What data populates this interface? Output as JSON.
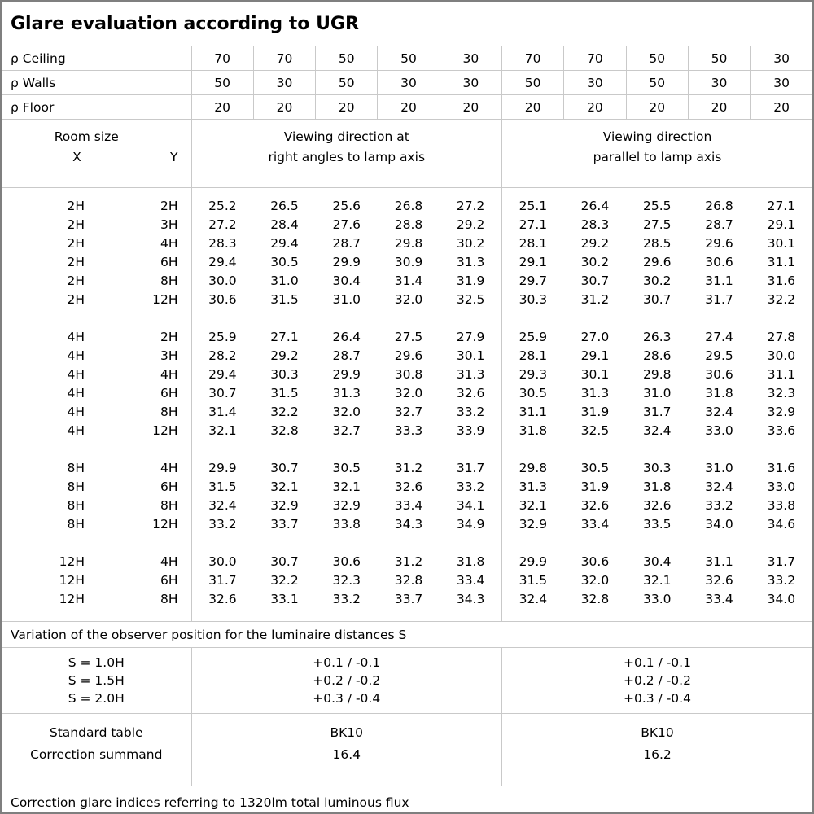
{
  "title": "Glare evaluation according to UGR",
  "colors": {
    "background": "#ffffff",
    "text": "#000000",
    "grid_line": "#c9c9c9",
    "outer_frame": "#7f7f7f"
  },
  "reflectance": {
    "rows": [
      {
        "label": "ρ Ceiling",
        "values": [
          "70",
          "70",
          "50",
          "50",
          "30",
          "70",
          "70",
          "50",
          "50",
          "30"
        ]
      },
      {
        "label": "ρ Walls",
        "values": [
          "50",
          "30",
          "50",
          "30",
          "30",
          "50",
          "30",
          "50",
          "30",
          "30"
        ]
      },
      {
        "label": "ρ Floor",
        "values": [
          "20",
          "20",
          "20",
          "20",
          "20",
          "20",
          "20",
          "20",
          "20",
          "20"
        ]
      }
    ]
  },
  "room_header": {
    "label": "Room size",
    "x": "X",
    "y": "Y",
    "group1": [
      "Viewing direction at",
      "right angles to lamp axis"
    ],
    "group2": [
      "Viewing direction",
      "parallel to lamp axis"
    ]
  },
  "body_groups": [
    {
      "rows": [
        {
          "x": "2H",
          "y": "2H",
          "values": [
            "25.2",
            "26.5",
            "25.6",
            "26.8",
            "27.2",
            "25.1",
            "26.4",
            "25.5",
            "26.8",
            "27.1"
          ]
        },
        {
          "x": "2H",
          "y": "3H",
          "values": [
            "27.2",
            "28.4",
            "27.6",
            "28.8",
            "29.2",
            "27.1",
            "28.3",
            "27.5",
            "28.7",
            "29.1"
          ]
        },
        {
          "x": "2H",
          "y": "4H",
          "values": [
            "28.3",
            "29.4",
            "28.7",
            "29.8",
            "30.2",
            "28.1",
            "29.2",
            "28.5",
            "29.6",
            "30.1"
          ]
        },
        {
          "x": "2H",
          "y": "6H",
          "values": [
            "29.4",
            "30.5",
            "29.9",
            "30.9",
            "31.3",
            "29.1",
            "30.2",
            "29.6",
            "30.6",
            "31.1"
          ]
        },
        {
          "x": "2H",
          "y": "8H",
          "values": [
            "30.0",
            "31.0",
            "30.4",
            "31.4",
            "31.9",
            "29.7",
            "30.7",
            "30.2",
            "31.1",
            "31.6"
          ]
        },
        {
          "x": "2H",
          "y": "12H",
          "values": [
            "30.6",
            "31.5",
            "31.0",
            "32.0",
            "32.5",
            "30.3",
            "31.2",
            "30.7",
            "31.7",
            "32.2"
          ]
        }
      ]
    },
    {
      "rows": [
        {
          "x": "4H",
          "y": "2H",
          "values": [
            "25.9",
            "27.1",
            "26.4",
            "27.5",
            "27.9",
            "25.9",
            "27.0",
            "26.3",
            "27.4",
            "27.8"
          ]
        },
        {
          "x": "4H",
          "y": "3H",
          "values": [
            "28.2",
            "29.2",
            "28.7",
            "29.6",
            "30.1",
            "28.1",
            "29.1",
            "28.6",
            "29.5",
            "30.0"
          ]
        },
        {
          "x": "4H",
          "y": "4H",
          "values": [
            "29.4",
            "30.3",
            "29.9",
            "30.8",
            "31.3",
            "29.3",
            "30.1",
            "29.8",
            "30.6",
            "31.1"
          ]
        },
        {
          "x": "4H",
          "y": "6H",
          "values": [
            "30.7",
            "31.5",
            "31.3",
            "32.0",
            "32.6",
            "30.5",
            "31.3",
            "31.0",
            "31.8",
            "32.3"
          ]
        },
        {
          "x": "4H",
          "y": "8H",
          "values": [
            "31.4",
            "32.2",
            "32.0",
            "32.7",
            "33.2",
            "31.1",
            "31.9",
            "31.7",
            "32.4",
            "32.9"
          ]
        },
        {
          "x": "4H",
          "y": "12H",
          "values": [
            "32.1",
            "32.8",
            "32.7",
            "33.3",
            "33.9",
            "31.8",
            "32.5",
            "32.4",
            "33.0",
            "33.6"
          ]
        }
      ]
    },
    {
      "rows": [
        {
          "x": "8H",
          "y": "4H",
          "values": [
            "29.9",
            "30.7",
            "30.5",
            "31.2",
            "31.7",
            "29.8",
            "30.5",
            "30.3",
            "31.0",
            "31.6"
          ]
        },
        {
          "x": "8H",
          "y": "6H",
          "values": [
            "31.5",
            "32.1",
            "32.1",
            "32.6",
            "33.2",
            "31.3",
            "31.9",
            "31.8",
            "32.4",
            "33.0"
          ]
        },
        {
          "x": "8H",
          "y": "8H",
          "values": [
            "32.4",
            "32.9",
            "32.9",
            "33.4",
            "34.1",
            "32.1",
            "32.6",
            "32.6",
            "33.2",
            "33.8"
          ]
        },
        {
          "x": "8H",
          "y": "12H",
          "values": [
            "33.2",
            "33.7",
            "33.8",
            "34.3",
            "34.9",
            "32.9",
            "33.4",
            "33.5",
            "34.0",
            "34.6"
          ]
        }
      ]
    },
    {
      "rows": [
        {
          "x": "12H",
          "y": "4H",
          "values": [
            "30.0",
            "30.7",
            "30.6",
            "31.2",
            "31.8",
            "29.9",
            "30.6",
            "30.4",
            "31.1",
            "31.7"
          ]
        },
        {
          "x": "12H",
          "y": "6H",
          "values": [
            "31.7",
            "32.2",
            "32.3",
            "32.8",
            "33.4",
            "31.5",
            "32.0",
            "32.1",
            "32.6",
            "33.2"
          ]
        },
        {
          "x": "12H",
          "y": "8H",
          "values": [
            "32.6",
            "33.1",
            "33.2",
            "33.7",
            "34.3",
            "32.4",
            "32.8",
            "33.0",
            "33.4",
            "34.0"
          ]
        }
      ]
    }
  ],
  "footer": {
    "variation_note": "Variation of the observer position for the luminaire distances S",
    "s_block": {
      "labels": [
        "S = 1.0H",
        "S = 1.5H",
        "S = 2.0H"
      ],
      "group1": [
        "+0.1 / -0.1",
        "+0.2 / -0.2",
        "+0.3 / -0.4"
      ],
      "group2": [
        "+0.1 / -0.1",
        "+0.2 / -0.2",
        "+0.3 / -0.4"
      ]
    },
    "standard_block": {
      "labels": [
        "Standard table",
        "Correction summand"
      ],
      "group1": [
        "BK10",
        "16.4"
      ],
      "group2": [
        "BK10",
        "16.2"
      ]
    },
    "correction_note": "Correction glare indices referring to 1320lm total luminous flux"
  }
}
